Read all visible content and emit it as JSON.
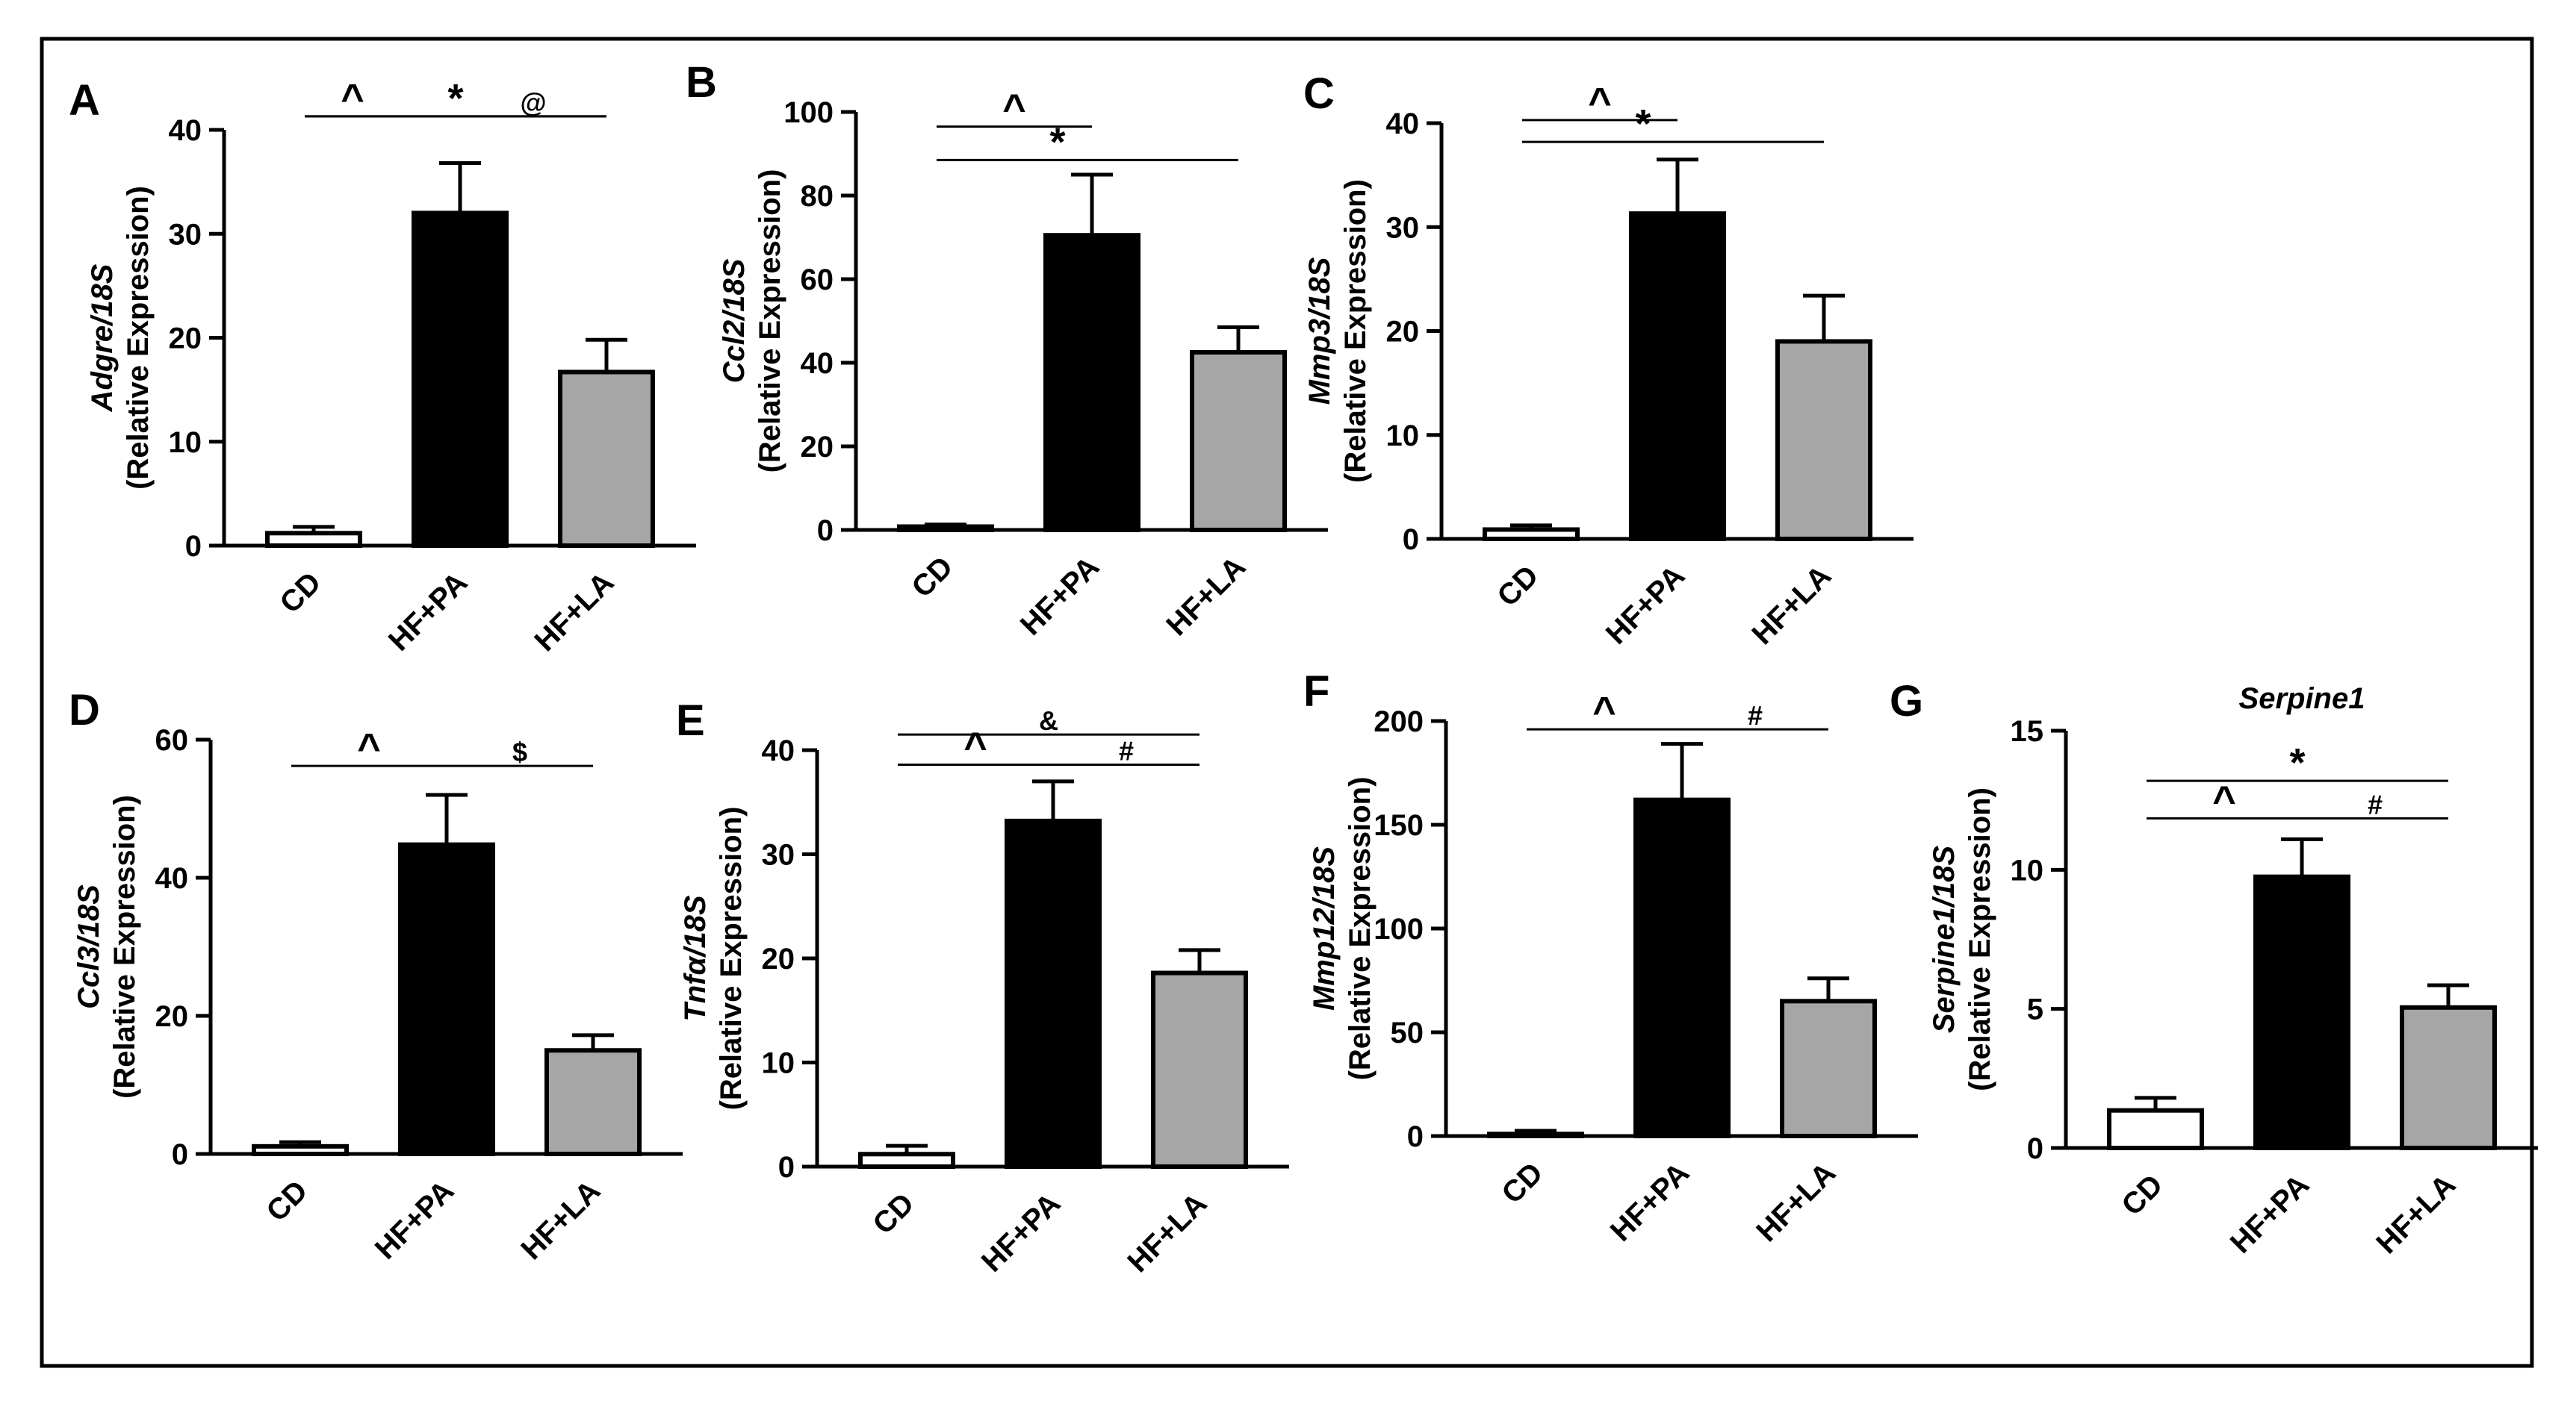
{
  "figure": {
    "categories": [
      "CD",
      "HF+PA",
      "HF+LA"
    ]
  },
  "colors": {
    "cd": "#ffffff",
    "hfpa": "#000000",
    "hfla": "#a6a6a6",
    "stroke": "#000000"
  },
  "chart_data": [
    {
      "panel": "A",
      "type": "bar",
      "title": "",
      "categories": [
        "CD",
        "HF+PA",
        "HF+LA"
      ],
      "values": [
        1.2,
        32,
        16.7
      ],
      "errors": [
        0.6,
        4.8,
        3.1
      ],
      "ylabel_gene": "Adgre/18S",
      "ylabel_unit": "(Relative Expression)",
      "ylim": [
        0,
        40
      ],
      "yticks": [
        0,
        10,
        20,
        30,
        40
      ],
      "annotations": [
        {
          "from": 1,
          "to": 2,
          "level": 41.3,
          "symbol": "^",
          "pos": "left"
        },
        {
          "from": 2,
          "to": 3,
          "level": 41.3,
          "symbol": "@",
          "pos": "right"
        },
        {
          "from": 1,
          "to": 3,
          "level": 41.3,
          "symbol": "*",
          "pos": "mid",
          "tier": 2
        }
      ]
    },
    {
      "panel": "B",
      "type": "bar",
      "title": "",
      "categories": [
        "CD",
        "HF+PA",
        "HF+LA"
      ],
      "values": [
        0.8,
        70.5,
        42.5
      ],
      "errors": [
        0.5,
        14.5,
        6.0
      ],
      "ylabel_gene": "Ccl2/18S",
      "ylabel_unit": "(Relative Expression)",
      "ylim": [
        0,
        100
      ],
      "yticks": [
        0,
        20,
        40,
        60,
        80,
        100
      ],
      "annotations": [
        {
          "from": 1,
          "to": 2,
          "level": 96.5,
          "symbol": "^",
          "pos": "mid"
        },
        {
          "from": 1,
          "to": 3,
          "level": 88.5,
          "symbol": "*",
          "pos": "left"
        }
      ]
    },
    {
      "panel": "C",
      "type": "bar",
      "title": "",
      "categories": [
        "CD",
        "HF+PA",
        "HF+LA"
      ],
      "values": [
        0.9,
        31.3,
        19
      ],
      "errors": [
        0.4,
        5.2,
        4.4
      ],
      "ylabel_gene": "Mmp3/18S",
      "ylabel_unit": "(Relative Expression)",
      "ylim": [
        0,
        40
      ],
      "yticks": [
        0,
        10,
        20,
        30,
        40
      ],
      "annotations": [
        {
          "from": 1,
          "to": 2,
          "level": 40.3,
          "symbol": "^",
          "pos": "mid"
        },
        {
          "from": 1,
          "to": 3,
          "level": 38.2,
          "symbol": "*",
          "pos": "left"
        }
      ]
    },
    {
      "panel": "D",
      "type": "bar",
      "title": "",
      "categories": [
        "CD",
        "HF+PA",
        "HF+LA"
      ],
      "values": [
        1.1,
        44.8,
        15
      ],
      "errors": [
        0.6,
        7.2,
        2.2
      ],
      "ylabel_gene": "Ccl3/18S",
      "ylabel_unit": "(Relative Expression)",
      "ylim": [
        0,
        60
      ],
      "yticks": [
        0,
        20,
        40,
        60
      ],
      "annotations": [
        {
          "from": 1,
          "to": 2,
          "level": 56.2,
          "symbol": "^",
          "pos": "mid"
        },
        {
          "from": 2,
          "to": 3,
          "level": 56.2,
          "symbol": "$",
          "pos": "mid"
        }
      ]
    },
    {
      "panel": "E",
      "type": "bar",
      "title": "",
      "categories": [
        "CD",
        "HF+PA",
        "HF+LA"
      ],
      "values": [
        1.2,
        33.2,
        18.6
      ],
      "errors": [
        0.8,
        3.8,
        2.2
      ],
      "ylabel_gene": "Tnfα/18S",
      "ylabel_unit": "(Relative Expression)",
      "ylim": [
        0,
        40
      ],
      "yticks": [
        0,
        10,
        20,
        30,
        40
      ],
      "annotations": [
        {
          "from": 1,
          "to": 2,
          "level": 38.6,
          "symbol": "^",
          "pos": "mid"
        },
        {
          "from": 2,
          "to": 3,
          "level": 38.6,
          "symbol": "#",
          "pos": "mid"
        },
        {
          "from": 1,
          "to": 3,
          "level": 41.5,
          "symbol": "&",
          "pos": "mid"
        }
      ]
    },
    {
      "panel": "F",
      "type": "bar",
      "title": "",
      "categories": [
        "CD",
        "HF+PA",
        "HF+LA"
      ],
      "values": [
        1,
        162,
        65
      ],
      "errors": [
        1.5,
        27,
        11
      ],
      "ylabel_gene": "Mmp12/18S",
      "ylabel_unit": "(Relative Expression)",
      "ylim": [
        0,
        200
      ],
      "yticks": [
        0,
        50,
        100,
        150,
        200
      ],
      "annotations": [
        {
          "from": 1,
          "to": 2,
          "level": 196,
          "symbol": "^",
          "pos": "mid"
        },
        {
          "from": 2,
          "to": 3,
          "level": 196,
          "symbol": "#",
          "pos": "mid"
        }
      ]
    },
    {
      "panel": "G",
      "type": "bar",
      "title": "Serpine1",
      "categories": [
        "CD",
        "HF+PA",
        "HF+LA"
      ],
      "values": [
        1.35,
        9.75,
        5.05
      ],
      "errors": [
        0.45,
        1.35,
        0.8
      ],
      "ylabel_gene": "Serpine1/18S",
      "ylabel_unit": "(Relative Expression)",
      "ylim": [
        0,
        15
      ],
      "yticks": [
        0,
        5,
        10,
        15
      ],
      "annotations": [
        {
          "from": 1,
          "to": 2,
          "level": 11.85,
          "symbol": "^",
          "pos": "mid"
        },
        {
          "from": 2,
          "to": 3,
          "level": 11.85,
          "symbol": "#",
          "pos": "mid"
        },
        {
          "from": 1,
          "to": 3,
          "level": 13.2,
          "symbol": "*",
          "pos": "mid"
        }
      ]
    }
  ]
}
